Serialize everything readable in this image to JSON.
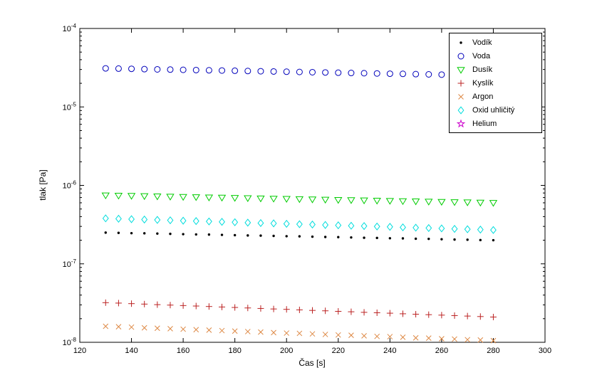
{
  "figure": {
    "background_color": "#ffffff"
  },
  "chart_data": {
    "type": "scatter",
    "title": "",
    "xlabel": "Čas [s]",
    "ylabel": "tlak [Pa]",
    "y_scale": "log",
    "grid": false,
    "legend_position": "top-right",
    "xlim": [
      120,
      300
    ],
    "ylim_exp": [
      -8,
      -4
    ],
    "x_ticks": [
      120,
      140,
      160,
      180,
      200,
      220,
      240,
      260,
      280,
      300
    ],
    "y_tick_exponents": [
      -8,
      -7,
      -6,
      -5,
      -4
    ],
    "x": [
      130,
      135,
      140,
      145,
      150,
      155,
      160,
      165,
      170,
      175,
      180,
      185,
      190,
      195,
      200,
      205,
      210,
      215,
      220,
      225,
      230,
      235,
      240,
      245,
      250,
      255,
      260,
      265,
      270,
      275,
      280
    ],
    "series": [
      {
        "name": "Vodík",
        "marker": "point",
        "color": "#000000",
        "values": [
          2.5e-07,
          2.48e-07,
          2.46e-07,
          2.45e-07,
          2.43e-07,
          2.41e-07,
          2.39e-07,
          2.37e-07,
          2.36e-07,
          2.34e-07,
          2.32e-07,
          2.3e-07,
          2.29e-07,
          2.27e-07,
          2.25e-07,
          2.24e-07,
          2.22e-07,
          2.2e-07,
          2.19e-07,
          2.17e-07,
          2.15e-07,
          2.14e-07,
          2.12e-07,
          2.11e-07,
          2.09e-07,
          2.08e-07,
          2.06e-07,
          2.04e-07,
          2.03e-07,
          2.01e-07,
          2e-07
        ]
      },
      {
        "name": "Voda",
        "marker": "circle",
        "color": "#0000bb",
        "values": [
          3.1e-05,
          3.08e-05,
          3.06e-05,
          3.03e-05,
          3.01e-05,
          2.99e-05,
          2.97e-05,
          2.95e-05,
          2.93e-05,
          2.91e-05,
          2.89e-05,
          2.87e-05,
          2.85e-05,
          2.83e-05,
          2.81e-05,
          2.79e-05,
          2.77e-05,
          2.75e-05,
          2.73e-05,
          2.71e-05,
          2.69e-05,
          2.67e-05,
          2.65e-05,
          2.64e-05,
          2.62e-05,
          2.6e-05,
          2.58e-05,
          2.56e-05,
          2.55e-05,
          2.53e-05,
          2.51e-05
        ]
      },
      {
        "name": "Dusík",
        "marker": "triangle-down",
        "color": "#00cc00",
        "values": [
          7.5e-07,
          7.44e-07,
          7.39e-07,
          7.33e-07,
          7.28e-07,
          7.22e-07,
          7.17e-07,
          7.12e-07,
          7.06e-07,
          7.01e-07,
          6.96e-07,
          6.91e-07,
          6.86e-07,
          6.81e-07,
          6.76e-07,
          6.71e-07,
          6.66e-07,
          6.61e-07,
          6.56e-07,
          6.52e-07,
          6.47e-07,
          6.42e-07,
          6.38e-07,
          6.33e-07,
          6.29e-07,
          6.24e-07,
          6.2e-07,
          6.15e-07,
          6.11e-07,
          6.06e-07,
          6.02e-07
        ]
      },
      {
        "name": "Kyslík",
        "marker": "plus",
        "color": "#bb2222",
        "values": [
          3.2e-08,
          3.16e-08,
          3.11e-08,
          3.07e-08,
          3.02e-08,
          2.98e-08,
          2.94e-08,
          2.9e-08,
          2.86e-08,
          2.82e-08,
          2.78e-08,
          2.74e-08,
          2.7e-08,
          2.66e-08,
          2.63e-08,
          2.59e-08,
          2.55e-08,
          2.52e-08,
          2.48e-08,
          2.45e-08,
          2.41e-08,
          2.38e-08,
          2.35e-08,
          2.31e-08,
          2.28e-08,
          2.25e-08,
          2.22e-08,
          2.19e-08,
          2.16e-08,
          2.13e-08,
          2.1e-08
        ]
      },
      {
        "name": "Argon",
        "marker": "x",
        "color": "#dd8844",
        "values": [
          1.6e-08,
          1.58e-08,
          1.56e-08,
          1.53e-08,
          1.51e-08,
          1.49e-08,
          1.47e-08,
          1.45e-08,
          1.43e-08,
          1.41e-08,
          1.39e-08,
          1.37e-08,
          1.35e-08,
          1.33e-08,
          1.31e-08,
          1.3e-08,
          1.28e-08,
          1.26e-08,
          1.24e-08,
          1.23e-08,
          1.21e-08,
          1.19e-08,
          1.18e-08,
          1.16e-08,
          1.14e-08,
          1.13e-08,
          1.11e-08,
          1.1e-08,
          1.08e-08,
          1.07e-08,
          1.05e-08
        ]
      },
      {
        "name": "Oxid uhličitý",
        "marker": "diamond",
        "color": "#00dddd",
        "values": [
          3.8e-07,
          3.76e-07,
          3.71e-07,
          3.67e-07,
          3.63e-07,
          3.59e-07,
          3.55e-07,
          3.51e-07,
          3.47e-07,
          3.43e-07,
          3.39e-07,
          3.35e-07,
          3.31e-07,
          3.28e-07,
          3.24e-07,
          3.2e-07,
          3.17e-07,
          3.13e-07,
          3.1e-07,
          3.06e-07,
          3.03e-07,
          2.99e-07,
          2.96e-07,
          2.92e-07,
          2.89e-07,
          2.86e-07,
          2.83e-07,
          2.79e-07,
          2.76e-07,
          2.73e-07,
          2.7e-07
        ]
      },
      {
        "name": "Helium",
        "marker": "pentagram",
        "color": "#cc00cc",
        "values": []
      }
    ]
  }
}
